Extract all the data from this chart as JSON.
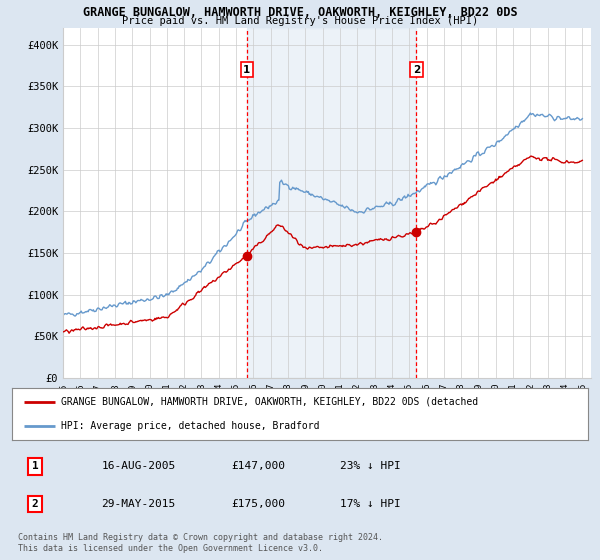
{
  "title": "GRANGE BUNGALOW, HAMWORTH DRIVE, OAKWORTH, KEIGHLEY, BD22 0DS",
  "subtitle": "Price paid vs. HM Land Registry's House Price Index (HPI)",
  "ylim": [
    0,
    420000
  ],
  "yticks": [
    0,
    50000,
    100000,
    150000,
    200000,
    250000,
    300000,
    350000,
    400000
  ],
  "ytick_labels": [
    "£0",
    "£50K",
    "£100K",
    "£150K",
    "£200K",
    "£250K",
    "£300K",
    "£350K",
    "£400K"
  ],
  "hpi_color": "#6699cc",
  "price_color": "#cc0000",
  "background_color": "#dce6f1",
  "plot_bg_color": "#ffffff",
  "transaction1_date": 2005.62,
  "transaction1_price": 147000,
  "transaction2_date": 2015.41,
  "transaction2_price": 175000,
  "legend_line1": "GRANGE BUNGALOW, HAMWORTH DRIVE, OAKWORTH, KEIGHLEY, BD22 0DS (detached",
  "legend_line2": "HPI: Average price, detached house, Bradford",
  "table_row1": [
    "1",
    "16-AUG-2005",
    "£147,000",
    "23% ↓ HPI"
  ],
  "table_row2": [
    "2",
    "29-MAY-2015",
    "£175,000",
    "17% ↓ HPI"
  ],
  "footnote": "Contains HM Land Registry data © Crown copyright and database right 2024.\nThis data is licensed under the Open Government Licence v3.0.",
  "xmin": 1995,
  "xmax": 2025.5
}
